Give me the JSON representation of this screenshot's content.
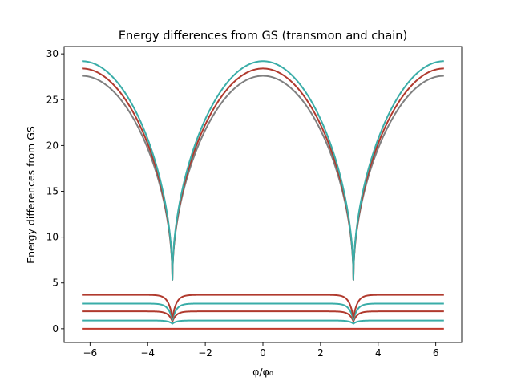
{
  "chart_data": {
    "type": "line",
    "title": "Energy differences from GS (transmon and chain)",
    "xlabel": "φ/φ₀",
    "ylabel": "Energy differences from GS",
    "xlim": [
      -6.9,
      6.9
    ],
    "ylim": [
      -1.5,
      30.8
    ],
    "x_ticks": [
      -6,
      -4,
      -2,
      0,
      2,
      4,
      6
    ],
    "x_tick_labels": [
      "−6",
      "−4",
      "−2",
      "0",
      "2",
      "4",
      "6"
    ],
    "y_ticks": [
      0,
      5,
      10,
      15,
      20,
      25,
      30
    ],
    "y_tick_labels": [
      "0",
      "5",
      "10",
      "15",
      "20",
      "25",
      "30"
    ],
    "x_range": [
      -6.2832,
      6.2832
    ],
    "grid": false,
    "legend": "none",
    "series": [
      {
        "kind": "chain",
        "color": "#c0392b",
        "level": 0.0,
        "min": 0.0
      },
      {
        "kind": "chain",
        "color": "#3aada8",
        "level": 0.9,
        "min": 0.55
      },
      {
        "kind": "chain",
        "color": "#b03a2e",
        "level": 1.9,
        "min": 0.8
      },
      {
        "kind": "chain",
        "color": "#3aada8",
        "level": 2.75,
        "min": 0.95
      },
      {
        "kind": "chain",
        "color": "#b03a2e",
        "level": 3.7,
        "min": 1.2
      },
      {
        "kind": "transmon",
        "color": "#7f7f7f",
        "peak": 27.6,
        "min": 5.3
      },
      {
        "kind": "transmon",
        "color": "#b03a2e",
        "peak": 28.4,
        "min": 5.3
      },
      {
        "kind": "transmon",
        "color": "#3aada8",
        "peak": 29.2,
        "min": 5.3
      }
    ]
  }
}
